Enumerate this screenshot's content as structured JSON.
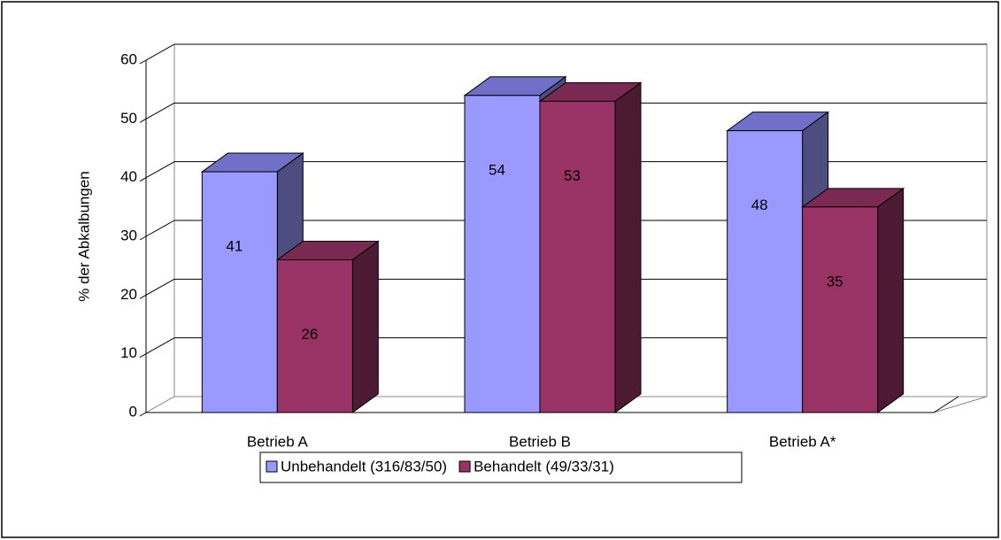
{
  "chart_data": {
    "type": "bar3d",
    "y_label": "% der Abkalbungen",
    "categories": [
      "Betrieb A",
      "Betrieb B",
      "Betrieb A*"
    ],
    "series": [
      {
        "name": "Unbehandelt (316/83/50)",
        "color": "#9999ff",
        "values": [
          41,
          54,
          48
        ]
      },
      {
        "name": "Behandelt (49/33/31)",
        "color": "#993366",
        "values": [
          26,
          53,
          35
        ]
      }
    ],
    "ylim": [
      0,
      60
    ],
    "yticks": [
      0,
      10,
      20,
      30,
      40,
      50,
      60
    ],
    "grid": true,
    "legend": "bottom"
  }
}
